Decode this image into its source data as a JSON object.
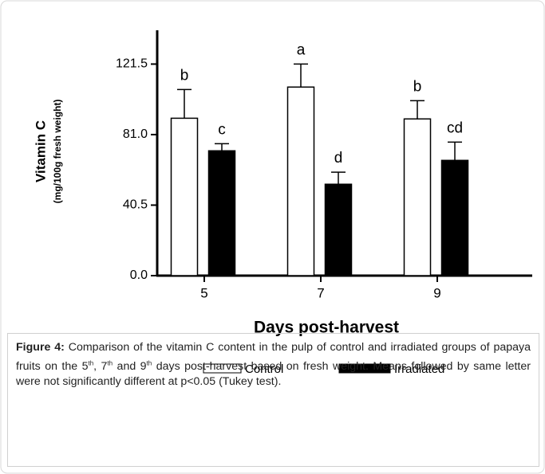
{
  "chart_data": {
    "type": "bar",
    "x_label": "Days post-harvest",
    "y_label": "Vitamin C",
    "y_sublabel": "(mg/100g fresh weight)",
    "categories": [
      "5",
      "7",
      "9"
    ],
    "series": [
      {
        "name": "Control",
        "color": "#ffffff",
        "values": [
          90.4,
          108.3,
          90
        ],
        "errors": [
          16.5,
          13.2,
          10.5
        ],
        "letters": [
          "b",
          "a",
          "b"
        ]
      },
      {
        "name": "Irradiated",
        "color": "#000000",
        "values": [
          71.7,
          52.5,
          66.2
        ],
        "errors": [
          4.1,
          6.9,
          10.5
        ],
        "letters": [
          "c",
          "d",
          "cd"
        ]
      }
    ],
    "ylim": [
      0,
      140
    ],
    "yticks": [
      {
        "value": 0,
        "label": "0.0"
      },
      40.5,
      {
        "value": 81,
        "label": "81.0"
      },
      121.5
    ]
  },
  "caption": {
    "label": "Figure 4:",
    "parts": [
      "Comparison of the vitamin C content in the pulp of control and irradiated groups of papaya fruits on the 5",
      "th",
      ", 7",
      "th",
      " and 9",
      "th",
      " days post-harvest based on fresh weight. Means followed by same letter were not significantly different at p<0.05 (Tukey test)."
    ]
  }
}
